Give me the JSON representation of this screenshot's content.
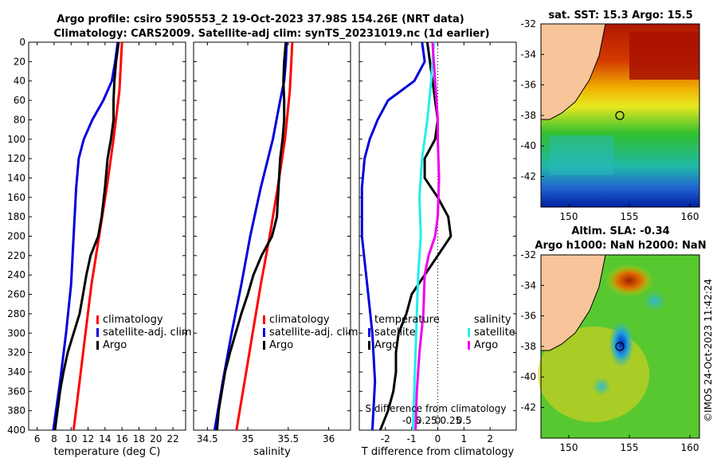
{
  "header": {
    "title_line1": "Argo profile: csiro 5905553_2 19-Oct-2023 37.98S 154.26E (NRT data)",
    "title_line2": "Climatology: CARS2009. Satellite-adj clim: synTS_20231019.nc (1d earlier)"
  },
  "colors": {
    "climatology": "#ff0000",
    "satellite": "#0000dd",
    "argo": "#000000",
    "satellite_s": "#22eeee",
    "argo_s": "#ee00ee"
  },
  "chart_data": [
    {
      "type": "line",
      "name": "temperature",
      "xlabel": "temperature (deg C)",
      "xlim": [
        5,
        23.5
      ],
      "ylim": [
        0,
        400
      ],
      "xticks": [
        "6",
        "8",
        "10",
        "12",
        "14",
        "16",
        "18",
        "20",
        "22"
      ],
      "xtick_values": [
        6,
        8,
        10,
        12,
        14,
        16,
        18,
        20,
        22
      ],
      "yticks": [
        "0",
        "20",
        "40",
        "60",
        "80",
        "100",
        "120",
        "140",
        "160",
        "180",
        "200",
        "220",
        "240",
        "260",
        "280",
        "300",
        "320",
        "340",
        "360",
        "380",
        "400"
      ],
      "legend": [
        "climatology",
        "satellite-adj. clim",
        "Argo"
      ],
      "series": [
        {
          "name": "climatology",
          "depth": [
            0,
            50,
            100,
            150,
            200,
            250,
            300,
            350,
            400
          ],
          "values": [
            16.0,
            15.7,
            15.0,
            14.2,
            13.3,
            12.4,
            11.7,
            11.0,
            10.3
          ]
        },
        {
          "name": "satellite-adj. clim",
          "depth": [
            0,
            20,
            40,
            60,
            80,
            100,
            120,
            150,
            200,
            250,
            300,
            350,
            400
          ],
          "values": [
            15.5,
            15.2,
            14.8,
            13.8,
            12.5,
            11.5,
            10.9,
            10.6,
            10.3,
            10.0,
            9.4,
            8.7,
            7.9
          ]
        },
        {
          "name": "Argo",
          "depth": [
            0,
            20,
            40,
            60,
            80,
            100,
            120,
            150,
            180,
            200,
            220,
            240,
            260,
            280,
            300,
            320,
            340,
            360,
            380,
            400
          ],
          "values": [
            15.6,
            15.3,
            15.1,
            15.0,
            15.0,
            14.7,
            14.3,
            14.0,
            13.6,
            13.2,
            12.3,
            11.8,
            11.4,
            11.0,
            10.3,
            9.6,
            9.1,
            8.7,
            8.4,
            8.1
          ]
        }
      ]
    },
    {
      "type": "line",
      "name": "salinity",
      "xlabel": "salinity",
      "xlim": [
        34.33,
        36.27
      ],
      "ylim": [
        0,
        400
      ],
      "xticks": [
        "34.5",
        "35",
        "35.5",
        "36"
      ],
      "xtick_values": [
        34.5,
        35,
        35.5,
        36
      ],
      "legend": [
        "climatology",
        "satellite-adj. clim",
        "Argo"
      ],
      "series": [
        {
          "name": "climatology",
          "depth": [
            0,
            50,
            100,
            150,
            200,
            250,
            300,
            350,
            400
          ],
          "values": [
            35.55,
            35.52,
            35.46,
            35.37,
            35.27,
            35.16,
            35.06,
            34.96,
            34.86
          ]
        },
        {
          "name": "satellite-adj. clim",
          "depth": [
            0,
            20,
            40,
            60,
            100,
            150,
            200,
            250,
            300,
            350,
            400
          ],
          "values": [
            35.48,
            35.47,
            35.45,
            35.4,
            35.31,
            35.16,
            35.03,
            34.92,
            34.8,
            34.69,
            34.59
          ]
        },
        {
          "name": "Argo",
          "depth": [
            0,
            20,
            40,
            60,
            80,
            100,
            120,
            150,
            180,
            200,
            220,
            240,
            260,
            280,
            300,
            320,
            340,
            360,
            380,
            400
          ],
          "values": [
            35.47,
            35.45,
            35.44,
            35.45,
            35.45,
            35.43,
            35.4,
            35.38,
            35.36,
            35.3,
            35.17,
            35.07,
            35.0,
            34.92,
            34.85,
            34.78,
            34.72,
            34.68,
            34.64,
            34.62
          ]
        }
      ]
    },
    {
      "type": "line",
      "name": "difference",
      "xlabel": "T difference from climatology",
      "xlabel_top": "S difference from climatology",
      "xlim": [
        -3,
        3
      ],
      "ylim": [
        0,
        400
      ],
      "xticks": [
        "-2",
        "-1",
        "0",
        "1",
        "2"
      ],
      "xtick_values": [
        -2,
        -1,
        0,
        1,
        2
      ],
      "sticks": [
        "-0.5",
        "-0.25",
        "0",
        "0.25",
        "0.5"
      ],
      "stick_values": [
        -1.0,
        -0.5,
        0,
        0.5,
        1.0
      ],
      "legend_t": [
        "temperature",
        "satellite",
        "Argo"
      ],
      "legend_s": [
        "salinity",
        "satellite",
        "Argo"
      ],
      "series": [
        {
          "name": "T satellite",
          "depth": [
            0,
            20,
            40,
            60,
            80,
            100,
            120,
            150,
            200,
            250,
            300,
            350,
            400
          ],
          "values": [
            -0.6,
            -0.5,
            -0.9,
            -1.9,
            -2.3,
            -2.6,
            -2.8,
            -2.9,
            -2.9,
            -2.7,
            -2.5,
            -2.4,
            -2.5
          ]
        },
        {
          "name": "T Argo",
          "depth": [
            0,
            20,
            40,
            60,
            80,
            100,
            120,
            140,
            160,
            180,
            200,
            220,
            240,
            260,
            280,
            300,
            320,
            340,
            360,
            380,
            400
          ],
          "values": [
            -0.4,
            -0.3,
            -0.2,
            -0.1,
            0.0,
            -0.1,
            -0.5,
            -0.5,
            0.0,
            0.4,
            0.5,
            0.0,
            -0.5,
            -1.0,
            -1.2,
            -1.5,
            -1.6,
            -1.6,
            -1.7,
            -1.9,
            -2.2
          ]
        },
        {
          "name": "S satellite",
          "depth": [
            0,
            40,
            80,
            120,
            160,
            200,
            240,
            280,
            320,
            360,
            400
          ],
          "values": [
            -0.15,
            -0.25,
            -0.4,
            -0.6,
            -0.7,
            -0.65,
            -0.75,
            -0.8,
            -0.85,
            -0.9,
            -0.95
          ]
        },
        {
          "name": "S Argo",
          "depth": [
            0,
            40,
            80,
            100,
            140,
            180,
            200,
            220,
            240,
            280,
            320,
            360,
            400
          ],
          "values": [
            -0.2,
            -0.1,
            0.0,
            0.0,
            0.05,
            0.0,
            -0.1,
            -0.35,
            -0.5,
            -0.55,
            -0.7,
            -0.8,
            -0.85
          ]
        }
      ]
    }
  ],
  "sst_map": {
    "title": "sat. SST: 15.3 Argo: 15.5",
    "lat_ticks": [
      "-32",
      "-34",
      "-36",
      "-38",
      "-40",
      "-42"
    ],
    "lon_ticks": [
      "150",
      "155",
      "160"
    ]
  },
  "sla_map": {
    "title_line1": "Altim. SLA: -0.34",
    "title_line2": "Argo h1000: NaN h2000: NaN",
    "lat_ticks": [
      "-32",
      "-34",
      "-36",
      "-38",
      "-40",
      "-42"
    ],
    "lon_ticks": [
      "150",
      "155",
      "160"
    ]
  },
  "credit": "©IMOS 24-Oct-2023 11:42:24"
}
